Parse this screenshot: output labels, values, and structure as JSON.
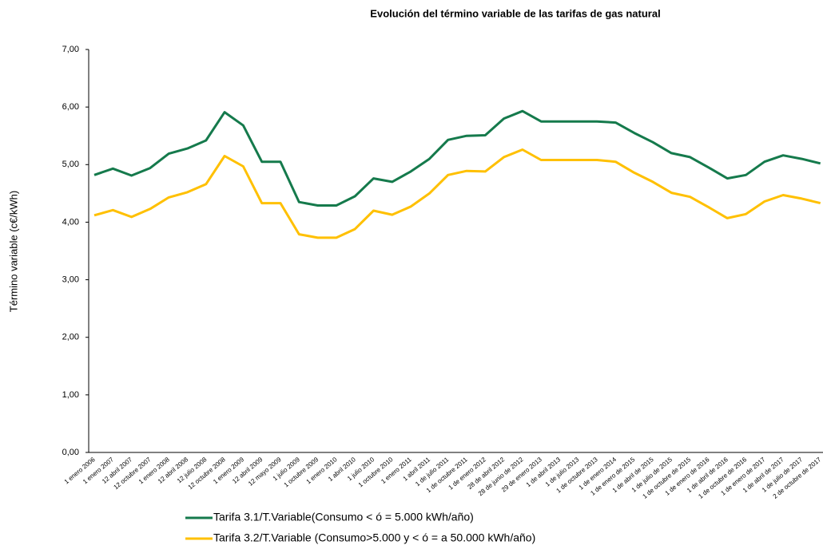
{
  "chart_data": {
    "type": "line",
    "title": "Evolución del término variable de las tarifas de gas natural",
    "y_label": "Término variable (c€/kWh)",
    "categories": [
      "1 enero 2006",
      "1 enero 2007",
      "12 abril 2007",
      "12 octubre 2007",
      "1 enero 2008",
      "12 abril 2008",
      "12 julio 2008",
      "12 octubre 2008",
      "1 enero 2009",
      "12 abril 2009",
      "12 mayo 2009",
      "1 julio 2009",
      "1 octubre 2009",
      "1 enero 2010",
      "1 abril 2010",
      "1 julio 2010",
      "1 octubre 2010",
      "1 enero 2011",
      "1 abril 2011",
      "1 de julio 2011",
      "1 de octubre 2011",
      "1 de enero 2012",
      "28 de abril 2012",
      "28 de junio de 2012",
      "29 de enero 2013",
      "1 de abril 2013",
      "1 de julio 2013",
      "1 de octubre 2013",
      "1 de enero 2014",
      "1 de enero de 2015",
      "1 de abril de 2015",
      "1 de julio de 2015",
      "1 de octubre de 2015",
      "1 de enero de 2016",
      "1 de abril de 2016",
      "1 de octubre de 2016",
      "1 de enero de 2017",
      "1 de abril de 2017",
      "1 de julio de 2017",
      "2 de octubre de 2017"
    ],
    "series": [
      {
        "name": "Tarifa 3.1/T.Variable(Consumo < ó = 5.000  kWh/año)",
        "color": "#157a4c",
        "values": [
          4.82,
          4.93,
          4.81,
          4.94,
          5.19,
          5.28,
          5.42,
          5.91,
          5.68,
          5.05,
          5.05,
          4.35,
          4.29,
          4.29,
          4.45,
          4.76,
          4.7,
          4.88,
          5.1,
          5.43,
          5.5,
          5.51,
          5.8,
          5.93,
          5.75,
          5.75,
          5.75,
          5.75,
          5.73,
          5.55,
          5.39,
          5.2,
          5.13,
          4.95,
          4.76,
          4.82,
          5.05,
          5.16,
          5.1,
          5.02
        ]
      },
      {
        "name": "Tarifa 3.2/T.Variable (Consumo>5.000 y < ó = a 50.000 kWh/año)",
        "color": "#ffc000",
        "values": [
          4.12,
          4.21,
          4.09,
          4.23,
          4.43,
          4.52,
          4.66,
          5.15,
          4.97,
          4.33,
          4.33,
          3.79,
          3.73,
          3.73,
          3.88,
          4.2,
          4.13,
          4.27,
          4.5,
          4.82,
          4.89,
          4.88,
          5.13,
          5.26,
          5.08,
          5.08,
          5.08,
          5.08,
          5.05,
          4.86,
          4.7,
          4.51,
          4.44,
          4.26,
          4.07,
          4.14,
          4.36,
          4.47,
          4.41,
          4.33
        ]
      }
    ],
    "ylim": [
      0,
      7
    ],
    "yticks": [
      {
        "value": 0,
        "label": "0,00"
      },
      {
        "value": 1,
        "label": "1,00"
      },
      {
        "value": 2,
        "label": "2,00"
      },
      {
        "value": 3,
        "label": "3,00"
      },
      {
        "value": 4,
        "label": "4,00"
      },
      {
        "value": 5,
        "label": "5,00"
      },
      {
        "value": 6,
        "label": "6,00"
      },
      {
        "value": 7,
        "label": "7,00"
      }
    ],
    "grid": false,
    "legend": "bottom"
  }
}
